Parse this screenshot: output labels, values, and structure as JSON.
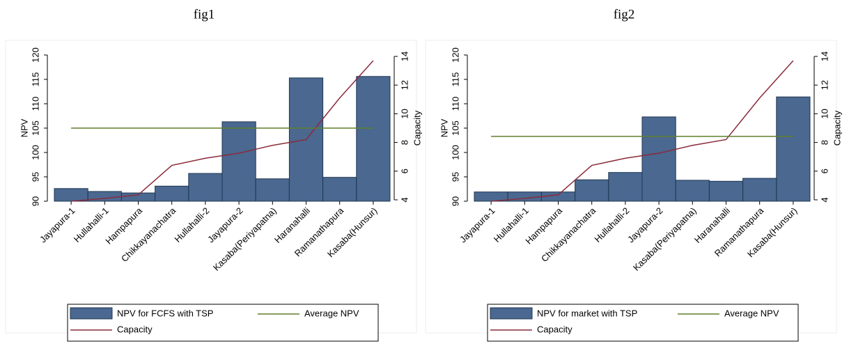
{
  "chart_data": [
    {
      "type": "bar",
      "title": "fig1",
      "ylabel": "NPV",
      "y2label": "Capacity",
      "categories": [
        "Jayapura-1",
        "Hullahalli-1",
        "Hampapura",
        "Chikkayanachatra",
        "Hullahalli-2",
        "Jayapura-2",
        "Kasaba(Periyapatna)",
        "Haranahalli",
        "Ramanathapura",
        "Kasaba(Hunsur)"
      ],
      "series": [
        {
          "name": "NPV for FCFS with TSP",
          "color": "#4a6890",
          "values": [
            92.6,
            92.0,
            91.7,
            93.1,
            95.7,
            106.3,
            94.6,
            115.3,
            94.9,
            115.6
          ]
        },
        {
          "name": "Capacity",
          "color": "#8b2a3a",
          "axis": "y2",
          "values": [
            3.9,
            4.1,
            4.35,
            6.4,
            6.9,
            7.25,
            7.8,
            8.2,
            11.1,
            13.7
          ]
        }
      ],
      "average_line": {
        "name": "Average NPV",
        "color": "#5f7f2a",
        "value": 105
      },
      "ylim": [
        90,
        120
      ],
      "yticks": [
        90,
        95,
        100,
        105,
        110,
        115,
        120
      ],
      "y2lim": [
        4,
        14
      ],
      "y2ticks": [
        4,
        6,
        8,
        10,
        12,
        14
      ]
    },
    {
      "type": "bar",
      "title": "fig2",
      "ylabel": "NPV",
      "y2label": "Capacity",
      "categories": [
        "Jayapura-1",
        "Hullahalli-1",
        "Hampapura",
        "Chikkayanachatra",
        "Hullahalli-2",
        "Jayapura-2",
        "Kasaba(Periyapatna)",
        "Haranahalli",
        "Ramanathapura",
        "Kasaba(Hunsur)"
      ],
      "series": [
        {
          "name": "NPV for market with TSP",
          "color": "#4a6890",
          "values": [
            91.9,
            91.9,
            91.9,
            94.4,
            95.9,
            107.3,
            94.3,
            94.1,
            94.7,
            111.4
          ]
        },
        {
          "name": "Capacity",
          "color": "#8b2a3a",
          "axis": "y2",
          "values": [
            3.9,
            4.1,
            4.35,
            6.4,
            6.9,
            7.25,
            7.8,
            8.2,
            11.1,
            13.7
          ]
        }
      ],
      "average_line": {
        "name": "Average NPV",
        "color": "#5f7f2a",
        "value": 103.3
      },
      "ylim": [
        90,
        120
      ],
      "yticks": [
        90,
        95,
        100,
        105,
        110,
        115,
        120
      ],
      "y2lim": [
        4,
        14
      ],
      "y2ticks": [
        4,
        6,
        8,
        10,
        12,
        14
      ]
    }
  ]
}
